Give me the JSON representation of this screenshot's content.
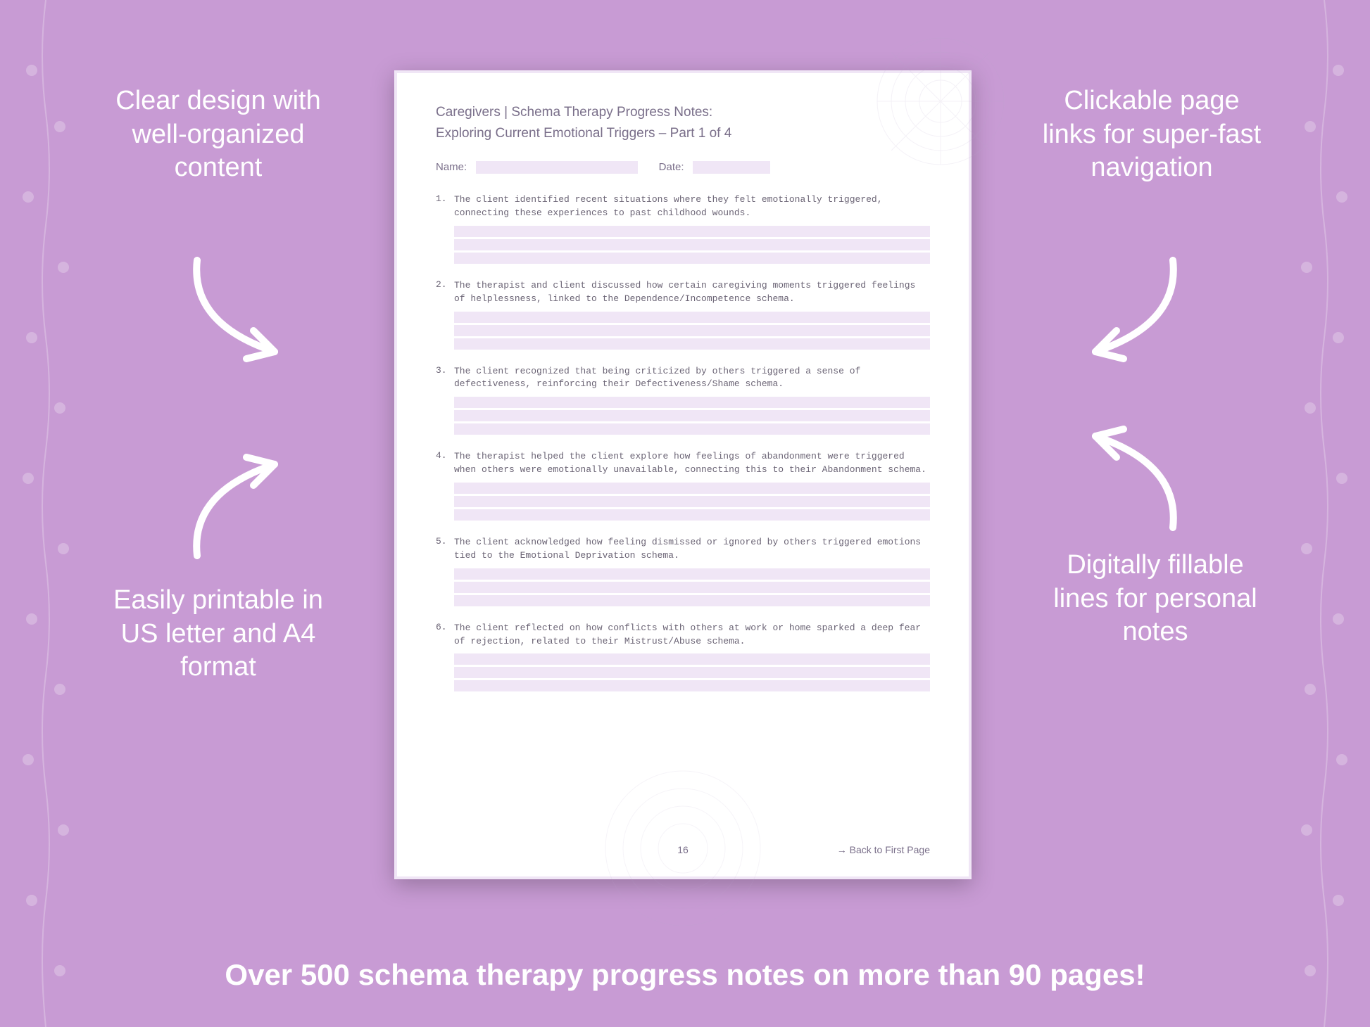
{
  "background_color": "#c89bd4",
  "page_bg": "#ffffff",
  "page_border": "#f0e6f6",
  "fill_color": "#f0e6f6",
  "text_color": "#7a6f8a",
  "mono_color": "#6b6475",
  "callout_color": "#ffffff",
  "page": {
    "title_line1": "Caregivers | Schema Therapy Progress Notes:",
    "title_line2": "Exploring Current Emotional Triggers  – Part 1 of 4",
    "name_label": "Name:",
    "date_label": "Date:",
    "items": [
      {
        "num": "1.",
        "text": "The client identified recent situations where they felt emotionally triggered, connecting these experiences to past childhood wounds."
      },
      {
        "num": "2.",
        "text": "The therapist and client discussed how certain caregiving moments triggered feelings of helplessness, linked to the Dependence/Incompetence schema."
      },
      {
        "num": "3.",
        "text": "The client recognized that being criticized by others triggered a sense of defectiveness, reinforcing their Defectiveness/Shame schema."
      },
      {
        "num": "4.",
        "text": "The therapist helped the client explore how feelings of abandonment were triggered when others were emotionally unavailable, connecting this to their Abandonment schema."
      },
      {
        "num": "5.",
        "text": "The client acknowledged how feeling dismissed or ignored by others triggered emotions tied to the Emotional Deprivation schema."
      },
      {
        "num": "6.",
        "text": "The client reflected on how conflicts with others at work or home sparked a deep fear of rejection, related to their Mistrust/Abuse schema."
      }
    ],
    "page_number": "16",
    "back_link": "→ Back to First Page"
  },
  "callouts": {
    "top_left": "Clear design with well-organized content",
    "top_right": "Clickable page links for super-fast navigation",
    "bottom_left": "Easily printable in US letter and A4 format",
    "bottom_right": "Digitally fillable lines for personal notes"
  },
  "banner": "Over 500 schema therapy progress notes on more than 90 pages!",
  "fill_lines_per_item": 3
}
